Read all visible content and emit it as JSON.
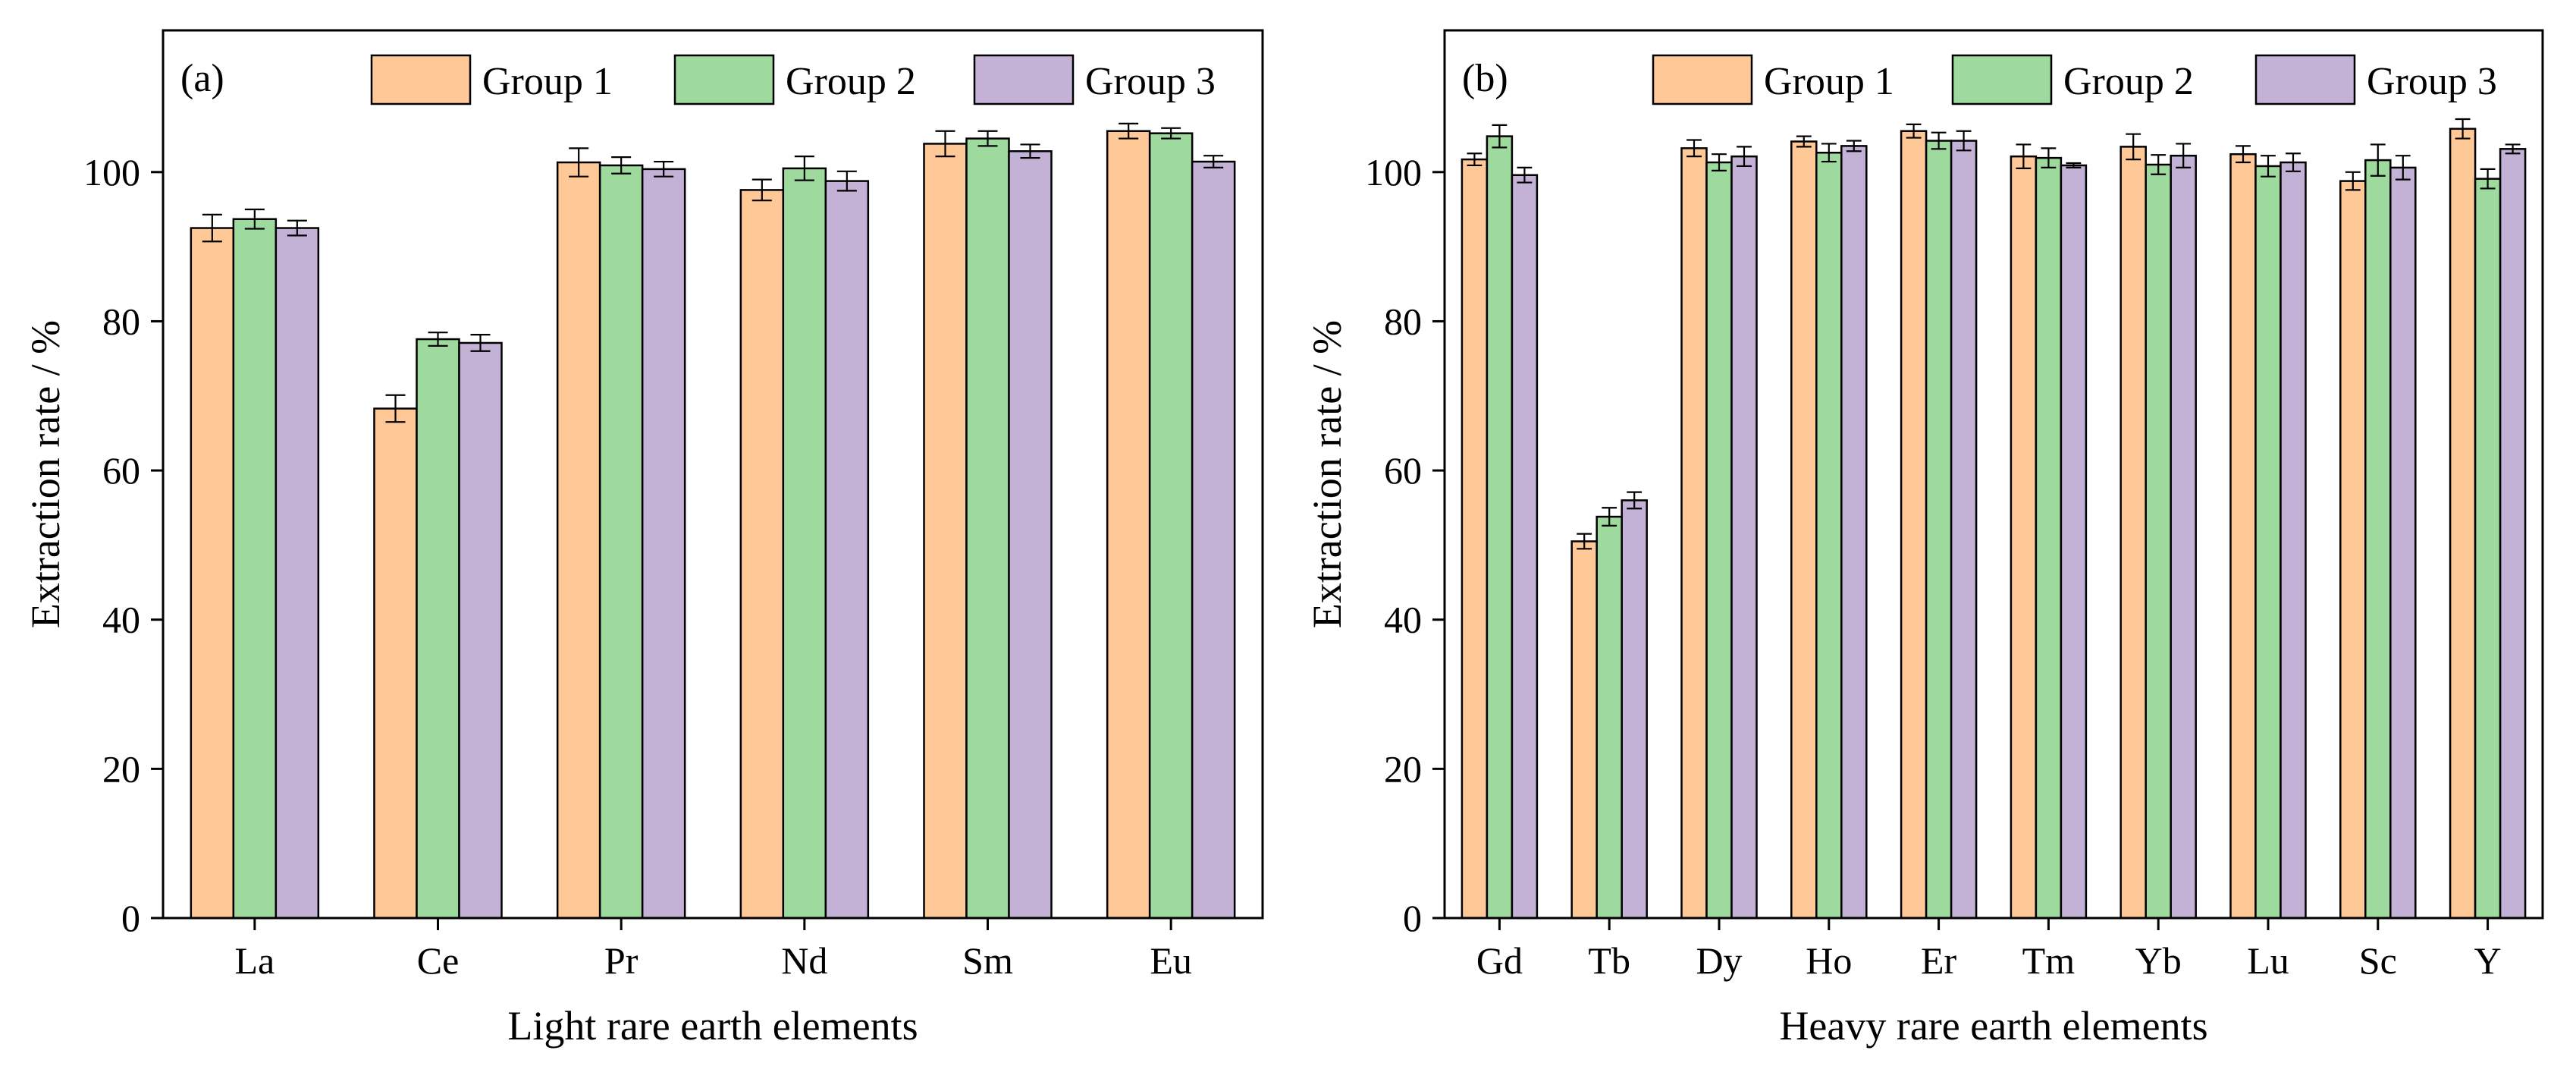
{
  "colors": {
    "group1": "#FFC897",
    "group2": "#9ED99E",
    "group3": "#C3B1D6",
    "edge": "#000000"
  },
  "chart_data": [
    {
      "type": "bar",
      "panel_label": "(a)",
      "xlabel": "Light rare earth elements",
      "ylabel": "Extraction rate / %",
      "ylim": [
        0,
        119
      ],
      "yticks": [
        0,
        20,
        40,
        60,
        80,
        100
      ],
      "ytick_labels": [
        "0",
        "20",
        "40",
        "60",
        "80",
        "100"
      ],
      "legend_position": "top-right",
      "categories": [
        "La",
        "Ce",
        "Pr",
        "Nd",
        "Sm",
        "Eu"
      ],
      "series": [
        {
          "name": "Group 1",
          "values": [
            92.5,
            68.3,
            101.3,
            97.6,
            103.8,
            105.5
          ],
          "errors": [
            1.8,
            1.8,
            1.9,
            1.4,
            1.7,
            1.0
          ]
        },
        {
          "name": "Group 2",
          "values": [
            93.7,
            77.6,
            100.9,
            100.5,
            104.5,
            105.2
          ],
          "errors": [
            1.3,
            0.9,
            1.1,
            1.6,
            1.0,
            0.7
          ]
        },
        {
          "name": "Group 3",
          "values": [
            92.5,
            77.1,
            100.4,
            98.8,
            102.8,
            101.4
          ],
          "errors": [
            1.0,
            1.1,
            1.0,
            1.3,
            0.9,
            0.8
          ]
        }
      ]
    },
    {
      "type": "bar",
      "panel_label": "(b)",
      "xlabel": "Heavy rare earth elements",
      "ylabel": "Extraction rate / %",
      "ylim": [
        0,
        119
      ],
      "yticks": [
        0,
        20,
        40,
        60,
        80,
        100
      ],
      "ytick_labels": [
        "0",
        "20",
        "40",
        "60",
        "80",
        "100"
      ],
      "legend_position": "top-right",
      "categories": [
        "Gd",
        "Tb",
        "Dy",
        "Ho",
        "Er",
        "Tm",
        "Yb",
        "Lu",
        "Sc",
        "Y"
      ],
      "series": [
        {
          "name": "Group 1",
          "values": [
            101.7,
            50.5,
            103.2,
            104.1,
            105.5,
            102.1,
            103.4,
            102.4,
            98.8,
            105.8
          ],
          "errors": [
            0.8,
            1.0,
            1.1,
            0.7,
            0.9,
            1.6,
            1.7,
            1.1,
            1.2,
            1.3
          ]
        },
        {
          "name": "Group 2",
          "values": [
            104.8,
            53.8,
            101.3,
            102.6,
            104.2,
            101.9,
            101.0,
            100.8,
            101.6,
            99.1
          ],
          "errors": [
            1.5,
            1.2,
            1.1,
            1.2,
            1.1,
            1.3,
            1.3,
            1.4,
            2.1,
            1.3
          ]
        },
        {
          "name": "Group 3",
          "values": [
            99.6,
            56.0,
            102.1,
            103.5,
            104.2,
            100.9,
            102.2,
            101.3,
            100.6,
            103.1
          ],
          "errors": [
            1.0,
            1.1,
            1.3,
            0.7,
            1.3,
            0.3,
            1.6,
            1.2,
            1.6,
            0.6
          ]
        }
      ]
    }
  ]
}
